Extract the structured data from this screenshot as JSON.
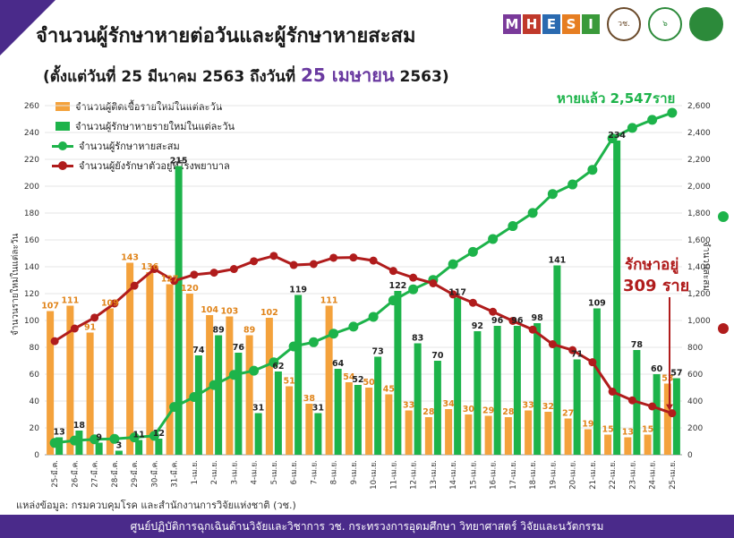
{
  "header": {
    "title": "จำนวนผู้รักษาหายต่อวันและผู้รักษาหายสะสม",
    "subtitle_pre": "(ตั้งแต่วันที่ 25 มีนาคม 2563 ถึงวันที่ ",
    "subtitle_hl": "25 เมษายน",
    "subtitle_post": " 2563)"
  },
  "logos": {
    "mhesi_letters": [
      "M",
      "H",
      "E",
      "S",
      "I"
    ],
    "mhesi_colors": [
      "#7a3a9a",
      "#c0392b",
      "#2a6ab0",
      "#e67e22",
      "#3a9a3a"
    ],
    "nrct": "วช.",
    "mark": "๖"
  },
  "annotations": {
    "recovered_total": "หายแล้ว 2,547ราย",
    "in_hospital_label": "รักษาอยู่",
    "in_hospital_value": "309 ราย"
  },
  "y_left_label": "จำนวนรายใหม่ในแต่ละวัน",
  "y_right_label": "จำนวนสะสม",
  "source": "แหล่งข้อมูล: กรมควบคุมโรค และสำนักงานการวิจัยแห่งชาติ (วช.)",
  "footer": "ศูนย์ปฏิบัติการฉุกเฉินด้านวิจัยและวิชาการ    วช.    กระทรวงการอุดมศึกษา วิทยาศาสตร์ วิจัยและนวัตกรรม",
  "chart_data": {
    "type": "bar",
    "categories": [
      "25-มี.ค.",
      "26-มี.ค.",
      "27-มี.ค.",
      "28-มี.ค.",
      "29-มี.ค.",
      "30-มี.ค.",
      "31-มี.ค.",
      "1-เม.ย.",
      "2-เม.ย.",
      "3-เม.ย.",
      "4-เม.ย.",
      "5-เม.ย.",
      "6-เม.ย.",
      "7-เม.ย.",
      "8-เม.ย.",
      "9-เม.ย.",
      "10-เม.ย.",
      "11-เม.ย.",
      "12-เม.ย.",
      "13-เม.ย.",
      "14-เม.ย.",
      "15-เม.ย.",
      "16-เม.ย.",
      "17-เม.ย.",
      "18-เม.ย.",
      "19-เม.ย.",
      "20-เม.ย.",
      "21-เม.ย.",
      "22-เม.ย.",
      "23-เม.ย.",
      "24-เม.ย.",
      "25-เม.ย."
    ],
    "series": [
      {
        "name": "จำนวนผู้ติดเชื้อรายใหม่ในแต่ละวัน",
        "kind": "bar",
        "axis": "left",
        "color": "#f4a23c",
        "values": [
          107,
          111,
          91,
          109,
          143,
          136,
          127,
          120,
          104,
          103,
          89,
          102,
          51,
          38,
          111,
          54,
          50,
          45,
          33,
          28,
          34,
          30,
          29,
          28,
          33,
          32,
          27,
          19,
          15,
          13,
          15,
          53
        ]
      },
      {
        "name": "จำนวนผู้รักษาหายรายใหม่ในแต่ละวัน",
        "kind": "bar",
        "axis": "left",
        "color": "#1db34a",
        "values": [
          13,
          18,
          9,
          3,
          11,
          12,
          215,
          74,
          89,
          76,
          31,
          62,
          119,
          31,
          64,
          52,
          73,
          122,
          83,
          70,
          117,
          92,
          96,
          96,
          98,
          141,
          71,
          109,
          234,
          78,
          60,
          57
        ]
      },
      {
        "name": "จำนวนผู้รักษาหายสะสม",
        "kind": "line",
        "axis": "right",
        "color": "#1db34a",
        "values": [
          88,
          106,
          115,
          118,
          129,
          141,
          356,
          430,
          519,
          595,
          626,
          688,
          807,
          838,
          902,
          954,
          1027,
          1149,
          1232,
          1302,
          1419,
          1511,
          1607,
          1703,
          1801,
          1942,
          2013,
          2122,
          2356,
          2434,
          2494,
          2547
        ]
      },
      {
        "name": "จำนวนผู้ยังรักษาตัวอยู่ที่โรงพยาบาล",
        "kind": "line",
        "axis": "right",
        "color": "#b01c1c",
        "values": [
          846,
          940,
          1021,
          1127,
          1259,
          1383,
          1295,
          1341,
          1356,
          1383,
          1441,
          1481,
          1413,
          1420,
          1467,
          1469,
          1446,
          1369,
          1319,
          1277,
          1194,
          1132,
          1065,
          997,
          932,
          823,
          779,
          689,
          470,
          405,
          360,
          309
        ]
      }
    ],
    "ylim_left": [
      0,
      260
    ],
    "ylim_right": [
      0,
      2600
    ],
    "yticks_left": [
      0,
      20,
      40,
      60,
      80,
      100,
      120,
      140,
      160,
      180,
      200,
      220,
      240,
      260
    ],
    "yticks_right": [
      "0",
      "200",
      "400",
      "600",
      "800",
      "1,000",
      "1,200",
      "1,400",
      "1,600",
      "1,800",
      "2,000",
      "2,200",
      "2,400",
      "2,600"
    ],
    "grid": true,
    "legend": "top-left"
  }
}
